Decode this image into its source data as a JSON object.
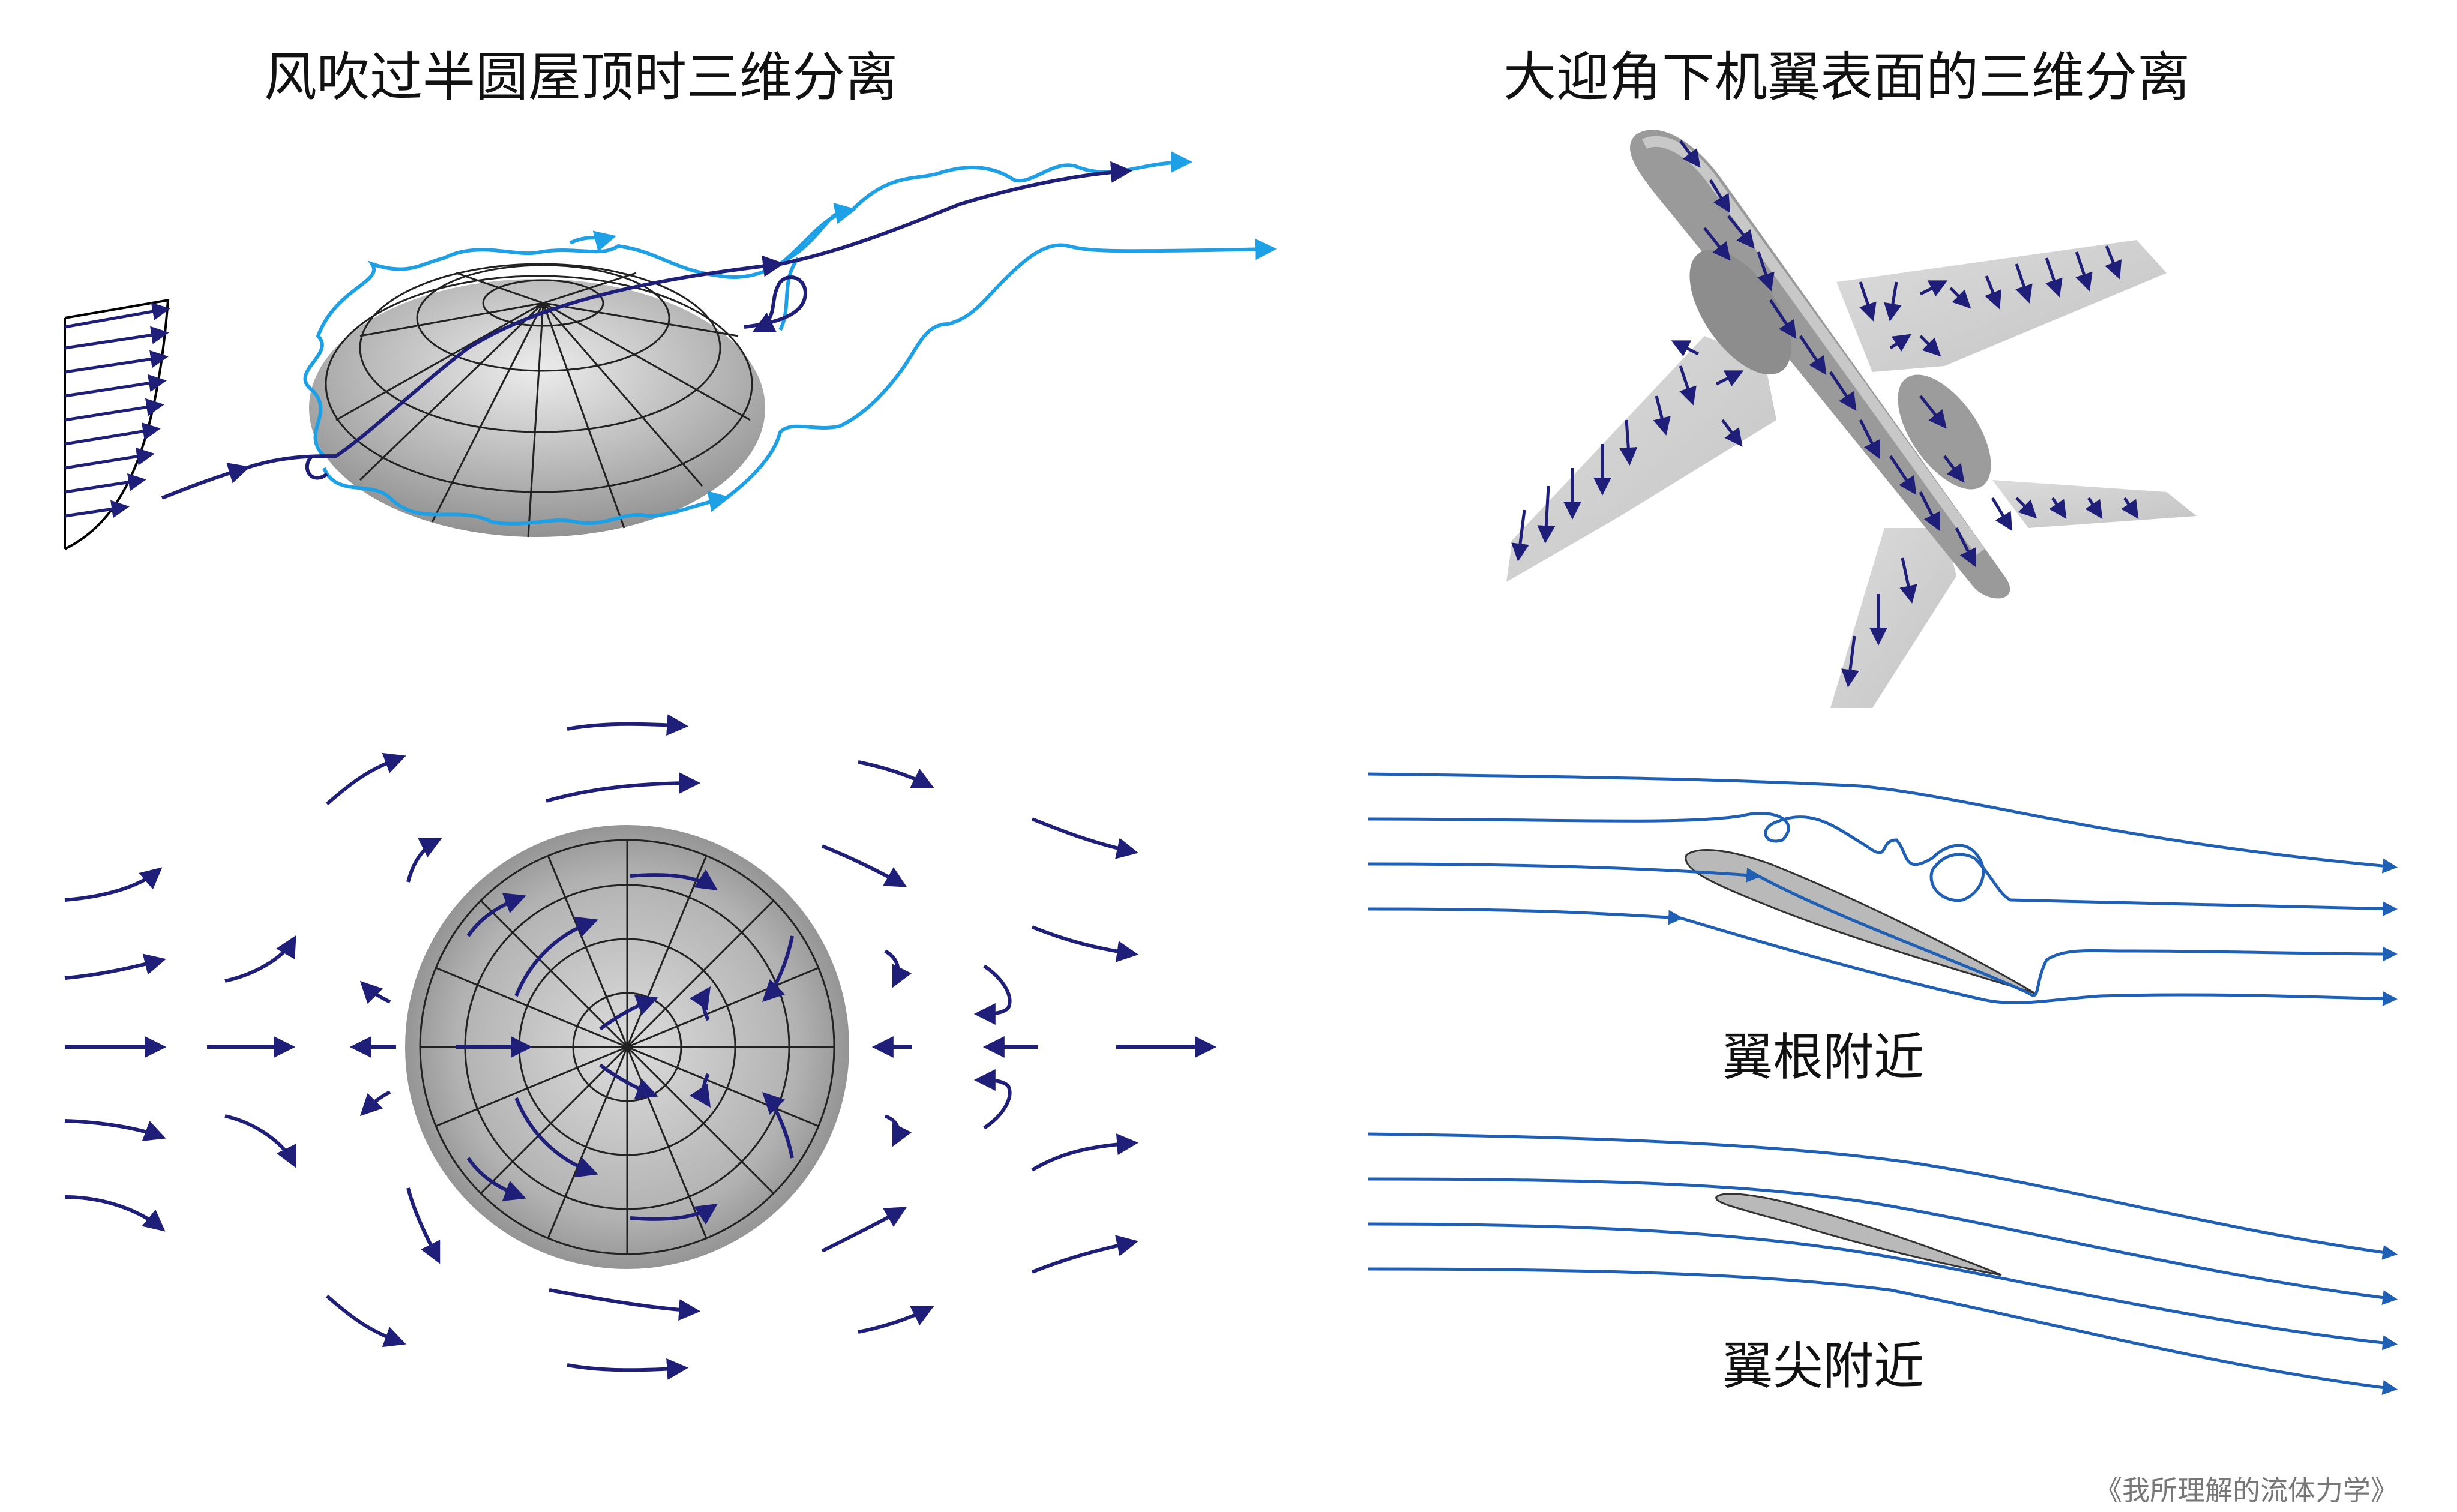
{
  "titles": {
    "dome": "风吹过半圆屋顶时三维分离",
    "aircraft": "大迎角下机翼表面的三维分离"
  },
  "labels": {
    "wing_root": "翼根附近",
    "wing_tip": "翼尖附近"
  },
  "credit": "《我所理解的流体力学》",
  "colors": {
    "navy": "#1f1f7a",
    "light_blue": "#1ea0e6",
    "stream_blue": "#1f5fb4",
    "gray_fill": "#b9b9b9"
  }
}
